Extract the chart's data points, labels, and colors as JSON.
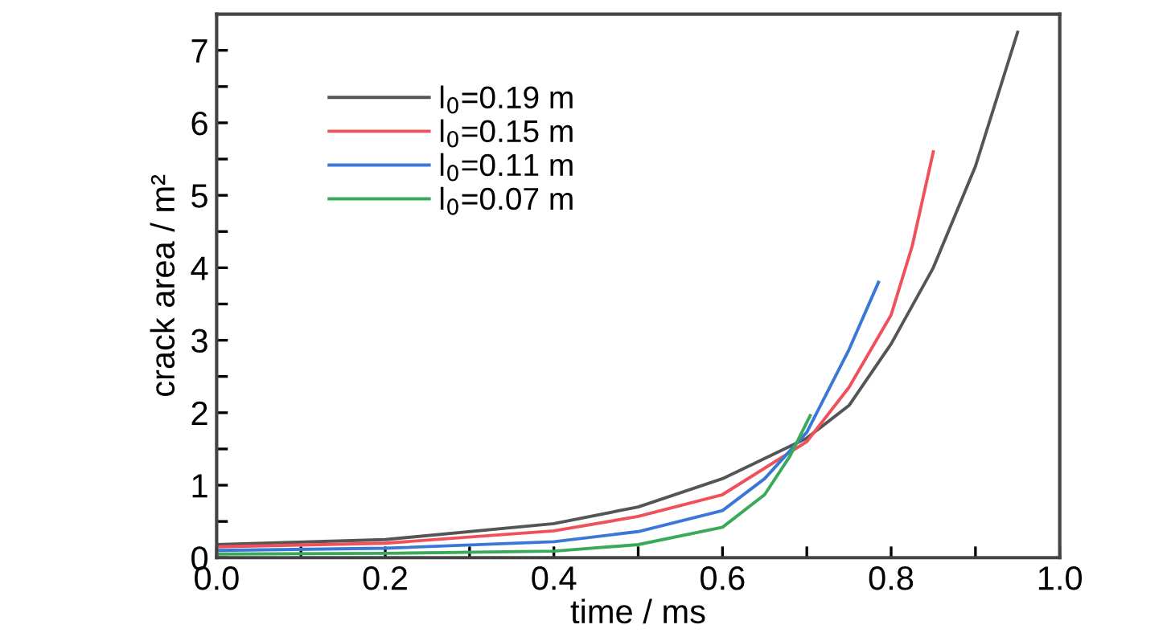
{
  "chart_data": {
    "type": "line",
    "xlabel": "time / ms",
    "ylabel": "crack area / m²",
    "xlim": [
      0,
      1.0
    ],
    "ylim": [
      0,
      7.5
    ],
    "xticks": [
      {
        "value": 0,
        "label": "0.0"
      },
      {
        "value": 0.1,
        "label": null
      },
      {
        "value": 0.2,
        "label": "0.2"
      },
      {
        "value": 0.3,
        "label": null
      },
      {
        "value": 0.4,
        "label": "0.4"
      },
      {
        "value": 0.5,
        "label": null
      },
      {
        "value": 0.6,
        "label": "0.6"
      },
      {
        "value": 0.7,
        "label": null
      },
      {
        "value": 0.8,
        "label": "0.8"
      },
      {
        "value": 0.9,
        "label": null
      },
      {
        "value": 1.0,
        "label": "1.0"
      }
    ],
    "yticks": [
      0,
      {
        "value": 0.5,
        "label": null
      },
      1,
      {
        "value": 1.5,
        "label": null
      },
      2,
      {
        "value": 2.5,
        "label": null
      },
      3,
      {
        "value": 3.5,
        "label": null
      },
      4,
      {
        "value": 4.5,
        "label": null
      },
      5,
      {
        "value": 5.5,
        "label": null
      },
      6,
      {
        "value": 6.5,
        "label": null
      },
      7
    ],
    "grid": false,
    "legend": "top left",
    "marker": "none",
    "line_style": "solid",
    "series": [
      {
        "name": "l$_{0}$=0.19 m",
        "color": "#555555",
        "x": [
          0,
          0.2,
          0.4,
          0.5,
          0.6,
          0.7,
          0.75,
          0.8,
          0.85,
          0.9,
          0.95
        ],
        "values": [
          0.18,
          0.25,
          0.47,
          0.7,
          1.09,
          1.65,
          2.1,
          2.95,
          4.0,
          5.4,
          7.25
        ]
      },
      {
        "name": "l$_{0}$=0.15 m",
        "color": "#f0505a",
        "x": [
          0,
          0.2,
          0.4,
          0.5,
          0.6,
          0.7,
          0.75,
          0.8,
          0.825,
          0.85
        ],
        "values": [
          0.15,
          0.2,
          0.37,
          0.57,
          0.87,
          1.6,
          2.35,
          3.35,
          4.3,
          5.6
        ]
      },
      {
        "name": "l$_{0}$=0.11 m",
        "color": "#3a78d8",
        "x": [
          0,
          0.2,
          0.4,
          0.5,
          0.6,
          0.65,
          0.7,
          0.75,
          0.785
        ],
        "values": [
          0.1,
          0.13,
          0.22,
          0.36,
          0.65,
          1.09,
          1.73,
          2.87,
          3.8
        ]
      },
      {
        "name": "l$_{0}$=0.07 m",
        "color": "#3aaa5a",
        "x": [
          0,
          0.2,
          0.4,
          0.5,
          0.6,
          0.65,
          0.68,
          0.704
        ],
        "values": [
          0.05,
          0.06,
          0.09,
          0.18,
          0.42,
          0.87,
          1.4,
          1.96
        ]
      }
    ]
  }
}
